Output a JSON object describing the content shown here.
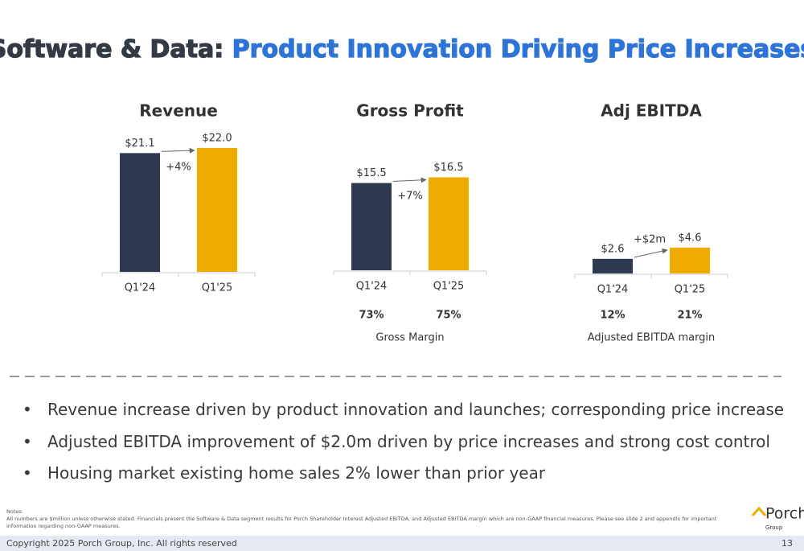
{
  "title_lead": "Software & Data:",
  "title_main": "Product Innovation Driving Price Increases",
  "chart_data": [
    {
      "type": "bar",
      "title": "Revenue",
      "categories": [
        "Q1'24",
        "Q1'25"
      ],
      "values": [
        21.1,
        22.0
      ],
      "value_labels": [
        "$21.1",
        "$22.0"
      ],
      "colors": [
        "#2d3a52",
        "#f0ab00"
      ],
      "annotation": "+4%"
    },
    {
      "type": "bar",
      "title": "Gross Profit",
      "categories": [
        "Q1'24",
        "Q1'25"
      ],
      "values": [
        15.5,
        16.5
      ],
      "value_labels": [
        "$15.5",
        "$16.5"
      ],
      "colors": [
        "#2d3a52",
        "#f0ab00"
      ],
      "annotation": "+7%",
      "margin_labels": [
        "73%",
        "75%"
      ],
      "margin_title": "Gross Margin"
    },
    {
      "type": "bar",
      "title": "Adj EBITDA",
      "categories": [
        "Q1'24",
        "Q1'25"
      ],
      "values": [
        2.6,
        4.6
      ],
      "value_labels": [
        "$2.6",
        "$4.6"
      ],
      "colors": [
        "#2d3a52",
        "#f0ab00"
      ],
      "annotation": "+$2m",
      "margin_labels": [
        "12%",
        "21%"
      ],
      "margin_title": "Adjusted EBITDA margin"
    }
  ],
  "bullets": [
    "Revenue increase driven by product innovation and launches; corresponding price increase",
    "Adjusted EBITDA improvement of $2.0m driven by price increases and strong cost control",
    "Housing market existing home sales 2% lower than prior year"
  ],
  "notes_title": "Notes:",
  "notes": "All numbers are $million unless otherwise stated. Financials present the Software & Data segment results for Porch Shareholder Interest Adjusted EBITDA, and Adjusted EBITDA margin which are non-GAAP financial measures. Please see slide 2 and appendix for important information regarding non-GAAP measures.",
  "logo": {
    "name": "Porch",
    "sub": "Group"
  },
  "copyright": "Copyright 2025 Porch Group, Inc. All rights reserved",
  "page_number": "13"
}
